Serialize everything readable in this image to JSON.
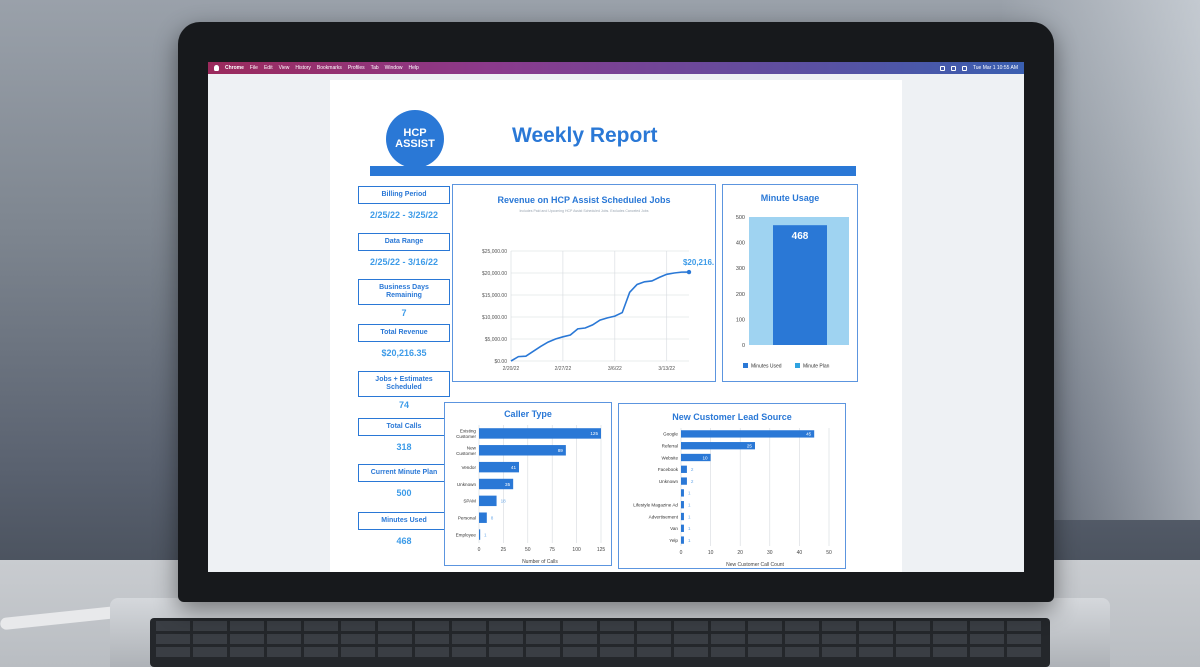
{
  "menubar": {
    "app": "Chrome",
    "items": [
      "File",
      "Edit",
      "View",
      "History",
      "Bookmarks",
      "Profiles",
      "Tab",
      "Window",
      "Help"
    ],
    "clock": "Tue Mar 1  10:55 AM"
  },
  "report": {
    "logo_line1": "HCP",
    "logo_line2": "ASSIST",
    "title": "Weekly Report"
  },
  "kpis": [
    {
      "label": "Billing Period",
      "value": "2/25/22    - 3/25/22"
    },
    {
      "label": "Data Range",
      "value": "2/25/22  - 3/16/22"
    },
    {
      "label": "Business Days Remaining",
      "value": "7"
    },
    {
      "label": "Total Revenue",
      "value": "$20,216.35"
    },
    {
      "label": "Jobs + Estimates Scheduled",
      "value": "74"
    },
    {
      "label": "Total Calls",
      "value": "318"
    },
    {
      "label": "Current Minute Plan",
      "value": "500"
    },
    {
      "label": "Minutes Used",
      "value": "468"
    }
  ],
  "chart_data": [
    {
      "type": "line",
      "title": "Revenue on HCP Assist Scheduled Jobs",
      "subtitle": "Includes Paid and Upcoming HCP Assist Scheduled Jobs. Excludes Canceled Jobs",
      "x": [
        "2/20/22",
        "2/21/22",
        "2/22/22",
        "2/23/22",
        "2/24/22",
        "2/25/22",
        "2/26/22",
        "2/27/22",
        "2/28/22",
        "3/1/22",
        "3/2/22",
        "3/3/22",
        "3/4/22",
        "3/5/22",
        "3/6/22",
        "3/7/22",
        "3/8/22",
        "3/9/22",
        "3/10/22",
        "3/11/22",
        "3/12/22",
        "3/13/22",
        "3/14/22",
        "3/15/22",
        "3/16/22"
      ],
      "values": [
        0,
        1000,
        1100,
        2200,
        3300,
        4300,
        5000,
        5500,
        5900,
        7300,
        7500,
        8200,
        9300,
        9800,
        10200,
        11000,
        15600,
        17400,
        18000,
        18200,
        19000,
        19700,
        20000,
        20200,
        20216.35
      ],
      "xticks": [
        "2/20/22",
        "2/27/22",
        "3/6/22",
        "3/13/22"
      ],
      "yticks": [
        "$0.00",
        "$5,000.00",
        "$10,000.00",
        "$15,000.00",
        "$20,000.00",
        "$25,000.00"
      ],
      "ylim": [
        0,
        25000
      ],
      "end_label": "$20,216.35",
      "grid": true
    },
    {
      "type": "bar",
      "title": "Minute Usage",
      "categories": [
        ""
      ],
      "series": [
        {
          "name": "Minutes Used",
          "values": [
            468
          ],
          "color": "#2a78d6"
        },
        {
          "name": "Minute Plan",
          "values": [
            500
          ],
          "color": "#9fd3f1"
        }
      ],
      "bar_label": "468",
      "yticks": [
        "0",
        "100",
        "200",
        "300",
        "400",
        "500"
      ],
      "ylim": [
        0,
        500
      ],
      "legend": "bottom"
    },
    {
      "type": "bar",
      "orientation": "horizontal",
      "title": "Caller Type",
      "categories": [
        "Existing Customer",
        "New Customer",
        "Vendor",
        "Unknown",
        "SPAM",
        "Personal",
        "Employee"
      ],
      "values": [
        125,
        89,
        41,
        35,
        18,
        8,
        1
      ],
      "xticks": [
        "0",
        "25",
        "50",
        "75",
        "100",
        "125"
      ],
      "xlim": [
        0,
        125
      ],
      "xlabel": "Number of Calls"
    },
    {
      "type": "bar",
      "orientation": "horizontal",
      "title": "New Customer Lead Source",
      "categories": [
        "Google",
        "Referral",
        "Website",
        "Facebook",
        "Unknown",
        "",
        "Lifestyle Magazine Ad",
        "Advertisement",
        "Van",
        "Yelp"
      ],
      "values": [
        45,
        25,
        10,
        2,
        2,
        1,
        1,
        1,
        1,
        1
      ],
      "xticks": [
        "0",
        "10",
        "20",
        "30",
        "40",
        "50"
      ],
      "xlim": [
        0,
        50
      ],
      "xlabel": "New Customer Call Count"
    }
  ],
  "colors": {
    "accent": "#2a78d6",
    "light_accent": "#9fd3f1",
    "value_text": "#3d9be8"
  }
}
